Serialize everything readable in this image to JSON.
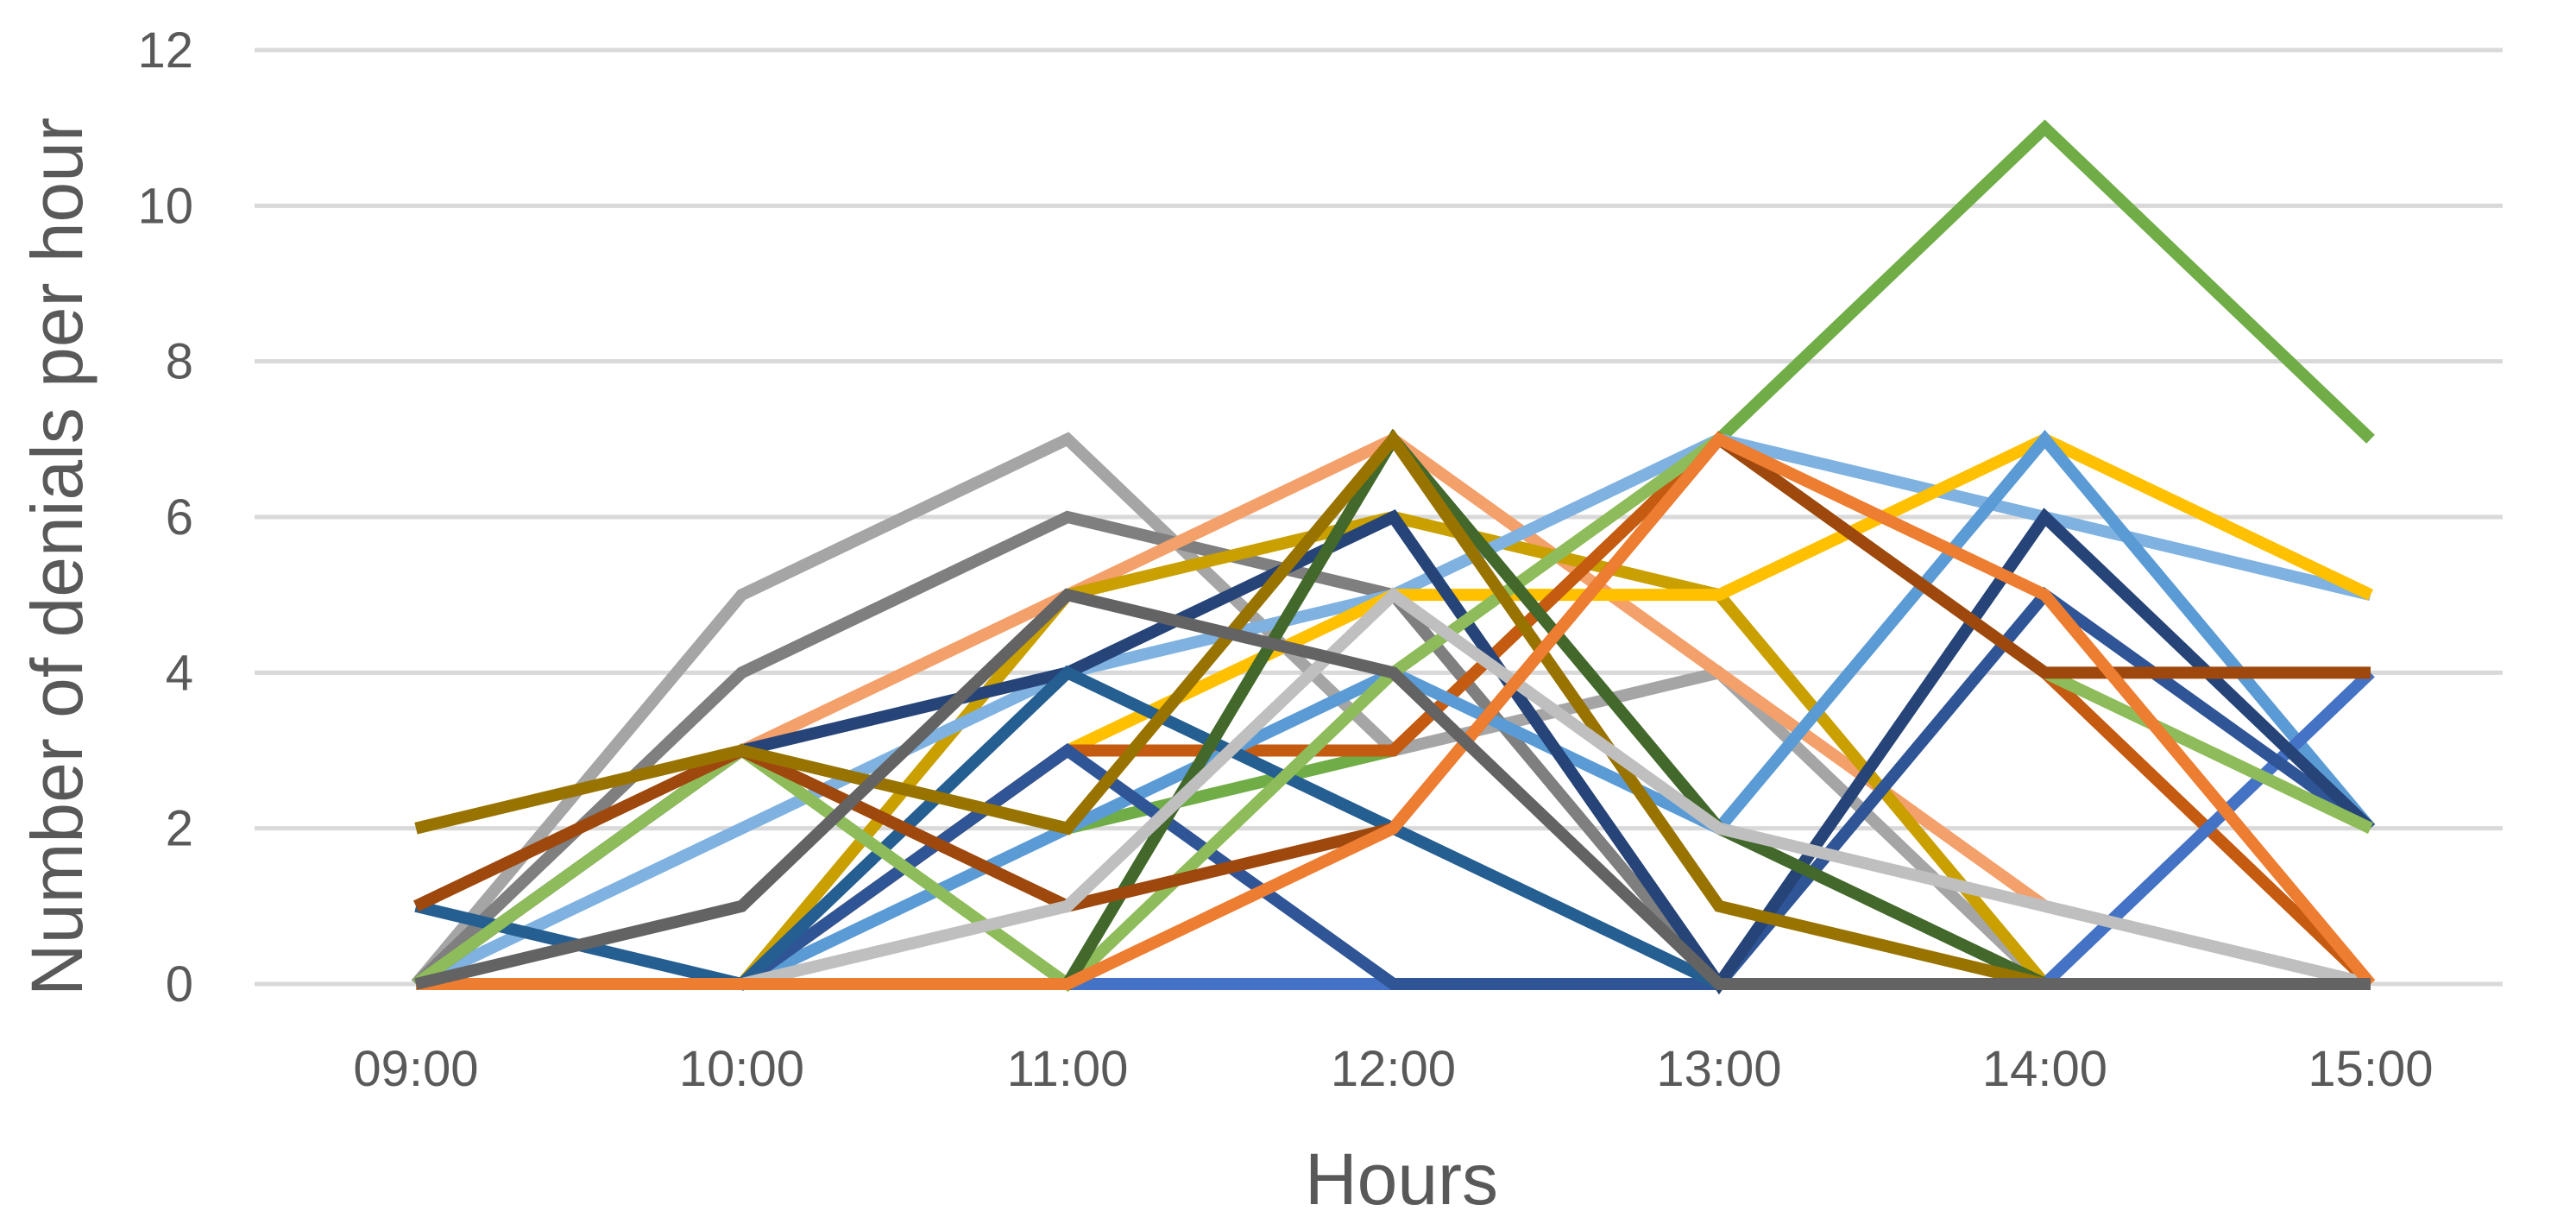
{
  "chart_data": {
    "type": "line",
    "title": "",
    "xlabel": "Hours",
    "ylabel": "Number of denials per hour",
    "categories": [
      "09:00",
      "10:00",
      "11:00",
      "12:00",
      "13:00",
      "14:00",
      "15:00"
    ],
    "ylim": [
      0,
      12
    ],
    "yticks": [
      0,
      2,
      4,
      6,
      8,
      10,
      12
    ],
    "grid": true,
    "legend": "none",
    "series": [
      {
        "color": "#70AD47",
        "values": [
          0,
          3,
          2,
          3,
          7,
          11,
          7
        ]
      },
      {
        "color": "#A5A5A5",
        "values": [
          0,
          5,
          7,
          3,
          4,
          0,
          0
        ]
      },
      {
        "color": "#7F7F7F",
        "values": [
          0,
          4,
          6,
          5,
          0,
          0,
          0
        ]
      },
      {
        "color": "#F4A06B",
        "values": [
          0,
          3,
          5,
          7,
          4,
          1,
          0
        ]
      },
      {
        "color": "#C9A000",
        "values": [
          0,
          0,
          5,
          6,
          5,
          0,
          0
        ]
      },
      {
        "color": "#7FB2E0",
        "values": [
          0,
          2,
          4,
          5,
          7,
          6,
          5
        ]
      },
      {
        "color": "#FFC000",
        "values": [
          0,
          0,
          3,
          5,
          5,
          7,
          5
        ]
      },
      {
        "color": "#C55A11",
        "values": [
          0,
          0,
          3,
          3,
          7,
          4,
          0
        ]
      },
      {
        "color": "#5B9BD5",
        "values": [
          0,
          0,
          2,
          4,
          2,
          7,
          2
        ]
      },
      {
        "color": "#4472C4",
        "values": [
          0,
          0,
          0,
          0,
          0,
          0,
          4
        ]
      },
      {
        "color": "#2F5597",
        "values": [
          0,
          0,
          3,
          0,
          0,
          5,
          2
        ]
      },
      {
        "color": "#264478",
        "values": [
          0,
          3,
          4,
          6,
          0,
          6,
          2
        ]
      },
      {
        "color": "#255E91",
        "values": [
          1,
          0,
          4,
          2,
          0,
          0,
          0
        ]
      },
      {
        "color": "#8FBC5A",
        "values": [
          0,
          3,
          0,
          4,
          7,
          4,
          2
        ]
      },
      {
        "color": "#43682B",
        "values": [
          0,
          0,
          0,
          7,
          2,
          0,
          0
        ]
      },
      {
        "color": "#9E480E",
        "values": [
          1,
          3,
          1,
          2,
          7,
          4,
          4
        ]
      },
      {
        "color": "#997300",
        "values": [
          2,
          3,
          2,
          7,
          1,
          0,
          0
        ]
      },
      {
        "color": "#BFBFBF",
        "values": [
          0,
          0,
          1,
          5,
          2,
          1,
          0
        ]
      },
      {
        "color": "#ED7D31",
        "values": [
          0,
          0,
          0,
          2,
          7,
          5,
          0
        ]
      },
      {
        "color": "#636363",
        "values": [
          0,
          1,
          5,
          4,
          0,
          0,
          0
        ]
      }
    ]
  }
}
